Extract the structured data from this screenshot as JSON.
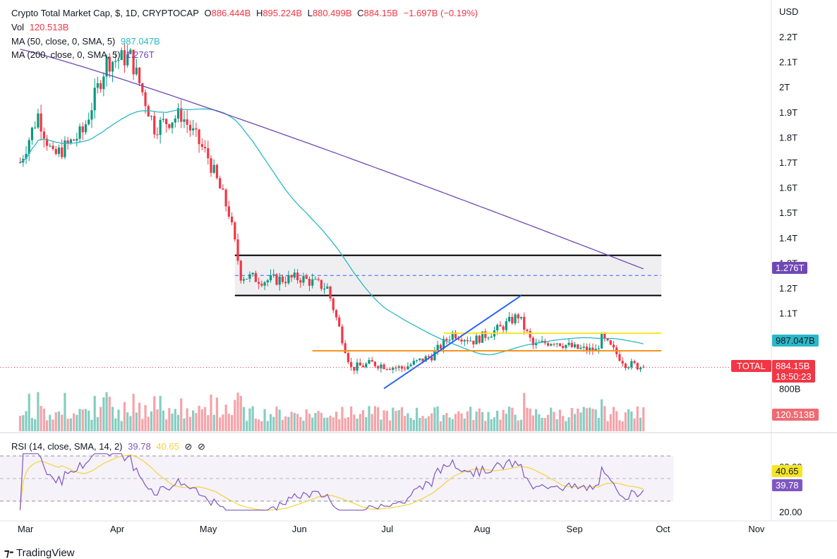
{
  "header": {
    "title": "Crypto Total Market Cap, $, 1D, CRYPTOCAP",
    "open_label": "O",
    "open": "886.444B",
    "high_label": "H",
    "high": "895.224B",
    "low_label": "L",
    "low": "880.499B",
    "close_label": "C",
    "close": "884.15B",
    "change": "−1.697B (−0.19%)",
    "vol_label": "Vol",
    "vol": "120.513B",
    "ma50_label": "MA (50, close, 0, SMA, 5)",
    "ma50": "987.047B",
    "ma200_label": "MA (200, close, 0, SMA, 5)",
    "ma200": "1.276T",
    "rsi_label": "RSI (14, close, SMA, 14, 2)",
    "rsi": "39.78",
    "rsi_ma": "40.65"
  },
  "price_axis": {
    "currency": "USD",
    "ticks": [
      "2.2T",
      "2.1T",
      "2T",
      "1.9T",
      "1.8T",
      "1.7T",
      "1.6T",
      "1.5T",
      "1.4T",
      "1.3T",
      "1.2T",
      "1.1T",
      "800B"
    ]
  },
  "rsi_axis": {
    "ticks": [
      "60.00",
      "20.00"
    ]
  },
  "time_axis": {
    "labels": [
      "Mar",
      "Apr",
      "May",
      "Jun",
      "Jul",
      "Aug",
      "Sep",
      "Oct",
      "Nov"
    ]
  },
  "tags": {
    "ma200": "1.276T",
    "ma50": "987.047B",
    "symbol": "TOTAL",
    "price": "884.15B",
    "countdown": "18:50:23",
    "volume": "120.513B",
    "rsi_ma": "40.65",
    "rsi": "39.78"
  },
  "branding": {
    "name": "TradingView"
  },
  "colors": {
    "up": "#089981",
    "down": "#f23645",
    "ma50": "#2ab8c8",
    "ma200": "#6f48b5",
    "rsi": "#7e57c2",
    "rsi_ma": "#f5d33b",
    "range_box_line": "#000000",
    "range_mid": "#2962ff",
    "trendline": "#2962ff",
    "yellow_line": "#f5e623",
    "orange_line": "#f7941d"
  },
  "chart_data": {
    "type": "candlestick",
    "symbol": "TOTAL",
    "title": "Crypto Total Market Cap, $, 1D, CRYPTOCAP",
    "x_labels": [
      "Mar",
      "Apr",
      "May",
      "Jun",
      "Jul",
      "Aug",
      "Sep",
      "Oct",
      "Nov"
    ],
    "y_unit": "USD",
    "price_keyframes": [
      {
        "date": "2024-02-28",
        "close_T": 1.7
      },
      {
        "date": "2024-03-05",
        "close_T": 1.89
      },
      {
        "date": "2024-03-10",
        "close_T": 1.72
      },
      {
        "date": "2024-03-20",
        "close_T": 1.82
      },
      {
        "date": "2024-03-28",
        "close_T": 2.1
      },
      {
        "date": "2024-04-05",
        "close_T": 2.12
      },
      {
        "date": "2024-04-13",
        "close_T": 1.84
      },
      {
        "date": "2024-04-22",
        "close_T": 1.89
      },
      {
        "date": "2024-05-01",
        "close_T": 1.72
      },
      {
        "date": "2024-05-08",
        "close_T": 1.5
      },
      {
        "date": "2024-05-12",
        "close_T": 1.25
      },
      {
        "date": "2024-05-20",
        "close_T": 1.23
      },
      {
        "date": "2024-06-01",
        "close_T": 1.24
      },
      {
        "date": "2024-06-10",
        "close_T": 1.2
      },
      {
        "date": "2024-06-18",
        "close_T": 0.88
      },
      {
        "date": "2024-06-25",
        "close_T": 0.9
      },
      {
        "date": "2024-07-05",
        "close_T": 0.88
      },
      {
        "date": "2024-07-15",
        "close_T": 0.93
      },
      {
        "date": "2024-07-22",
        "close_T": 1.02
      },
      {
        "date": "2024-07-29",
        "close_T": 0.99
      },
      {
        "date": "2024-08-07",
        "close_T": 1.04
      },
      {
        "date": "2024-08-13",
        "close_T": 1.09
      },
      {
        "date": "2024-08-18",
        "close_T": 0.97
      },
      {
        "date": "2024-08-25",
        "close_T": 0.99
      },
      {
        "date": "2024-09-01",
        "close_T": 0.96
      },
      {
        "date": "2024-09-08",
        "close_T": 0.95
      },
      {
        "date": "2024-09-10",
        "close_T": 1.0
      },
      {
        "date": "2024-09-18",
        "close_T": 0.9
      },
      {
        "date": "2024-09-24",
        "close_T": 0.884
      }
    ],
    "range_box_T": {
      "top": 1.33,
      "bottom": 1.17,
      "mid": 1.25,
      "from": "2024-05-10",
      "to": "2024-09-30"
    },
    "yellow_line_T": {
      "value": 1.02,
      "from": "2024-07-19",
      "to": "2024-09-30"
    },
    "orange_line_T": {
      "value": 0.95,
      "from": "2024-06-05",
      "to": "2024-09-30"
    },
    "trendline_T": {
      "from": {
        "date": "2024-06-29",
        "value": 0.8
      },
      "to": {
        "date": "2024-08-14",
        "value": 1.17
      }
    },
    "ma50_last": "987.047B",
    "ma200_last": "1.276T",
    "volume_last": "120.513B",
    "rsi_last": 39.78,
    "rsi_ma_last": 40.65,
    "rsi_levels": [
      70,
      50,
      30
    ]
  }
}
